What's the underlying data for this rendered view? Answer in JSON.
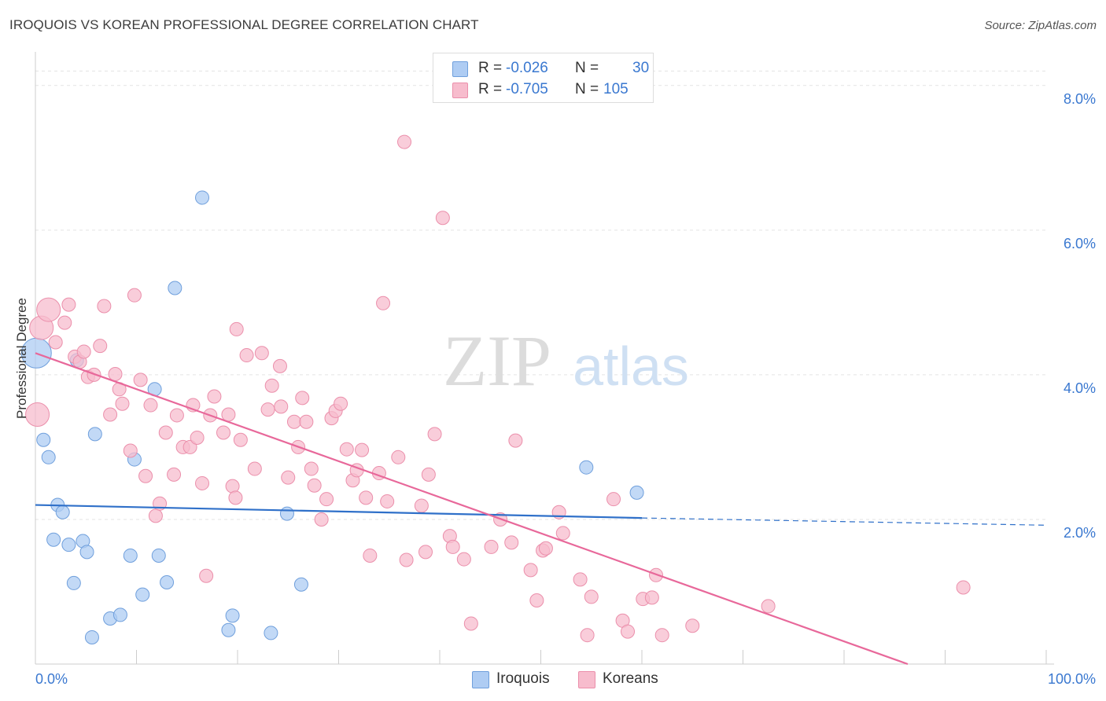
{
  "header": {
    "title": "IROQUOIS VS KOREAN PROFESSIONAL DEGREE CORRELATION CHART",
    "source": "Source: ZipAtlas.com"
  },
  "watermark": {
    "zip": "ZIP",
    "atlas": "atlas"
  },
  "legend": {
    "rows": [
      {
        "r_label": "R =",
        "r_value": "-0.026",
        "n_label": "N =",
        "n_value": "30",
        "color": "#aeccf3"
      },
      {
        "r_label": "R =",
        "r_value": "-0.705",
        "n_label": "N =",
        "n_value": "105",
        "color": "#f7bccd"
      }
    ]
  },
  "bottom_legend": {
    "items": [
      {
        "label": "Iroquois",
        "color": "#aeccf3"
      },
      {
        "label": "Koreans",
        "color": "#f7bccd"
      }
    ]
  },
  "colors": {
    "iroquois_fill": "#aeccf3",
    "iroquois_stroke": "#6f9fdc",
    "iroquois_line": "#2f70c9",
    "koreans_fill": "#f7bccd",
    "koreans_stroke": "#eb8fab",
    "koreans_line": "#e8689a",
    "tick_label": "#3a78d0",
    "grid": "#e3e3e3",
    "axis": "#cccccc"
  },
  "chart_data": {
    "type": "scatter",
    "title": "IROQUOIS VS KOREAN PROFESSIONAL DEGREE CORRELATION CHART",
    "xlabel": "",
    "ylabel": "Professional Degree",
    "xlim": [
      0,
      100
    ],
    "ylim": [
      0,
      8.4
    ],
    "x_tick_labels": [
      "0.0%",
      "100.0%"
    ],
    "y_ticks": [
      2,
      4,
      6,
      8
    ],
    "y_tick_labels": [
      "2.0%",
      "4.0%",
      "6.0%",
      "8.0%"
    ],
    "grid": true,
    "legend": "top-center",
    "series": [
      {
        "name": "Iroquois",
        "points": [
          [
            0.1,
            4.3,
            3
          ],
          [
            0.8,
            3.1,
            1
          ],
          [
            1.3,
            2.86,
            1
          ],
          [
            1.8,
            1.72,
            1
          ],
          [
            2.2,
            2.2,
            1
          ],
          [
            2.7,
            2.1,
            1
          ],
          [
            3.3,
            1.65,
            1
          ],
          [
            3.8,
            1.12,
            1
          ],
          [
            4.1,
            4.2,
            1
          ],
          [
            4.7,
            1.7,
            1
          ],
          [
            5.1,
            1.55,
            1
          ],
          [
            5.6,
            0.37,
            1
          ],
          [
            5.9,
            3.18,
            1
          ],
          [
            7.4,
            0.63,
            1
          ],
          [
            8.4,
            0.68,
            1
          ],
          [
            9.4,
            1.5,
            1
          ],
          [
            9.8,
            2.83,
            1
          ],
          [
            10.6,
            0.96,
            1
          ],
          [
            11.8,
            3.8,
            1
          ],
          [
            12.2,
            1.5,
            1
          ],
          [
            13.0,
            1.13,
            1
          ],
          [
            13.8,
            5.2,
            1
          ],
          [
            16.5,
            6.45,
            1
          ],
          [
            19.1,
            0.47,
            1
          ],
          [
            19.5,
            0.67,
            1
          ],
          [
            23.3,
            0.43,
            1
          ],
          [
            24.9,
            2.08,
            1
          ],
          [
            26.3,
            1.1,
            1
          ],
          [
            54.5,
            2.72,
            1
          ],
          [
            59.5,
            2.37,
            1
          ]
        ]
      },
      {
        "name": "Koreans",
        "points": [
          [
            0.2,
            3.45,
            2
          ],
          [
            0.6,
            4.65,
            2
          ],
          [
            1.3,
            4.9,
            2
          ],
          [
            2.0,
            4.45,
            1
          ],
          [
            2.9,
            4.72,
            1
          ],
          [
            3.3,
            4.97,
            1
          ],
          [
            3.9,
            4.25,
            1
          ],
          [
            4.4,
            4.18,
            1
          ],
          [
            4.8,
            4.32,
            1
          ],
          [
            5.2,
            3.97,
            1
          ],
          [
            5.8,
            4.0,
            1
          ],
          [
            6.4,
            4.4,
            1
          ],
          [
            6.8,
            4.95,
            1
          ],
          [
            7.4,
            3.45,
            1
          ],
          [
            7.9,
            4.01,
            1
          ],
          [
            8.3,
            3.8,
            1
          ],
          [
            8.6,
            3.6,
            1
          ],
          [
            9.4,
            2.95,
            1
          ],
          [
            9.8,
            5.1,
            1
          ],
          [
            10.4,
            3.93,
            1
          ],
          [
            10.9,
            2.6,
            1
          ],
          [
            11.4,
            3.58,
            1
          ],
          [
            11.9,
            2.05,
            1
          ],
          [
            12.3,
            2.22,
            1
          ],
          [
            12.9,
            3.2,
            1
          ],
          [
            13.7,
            2.62,
            1
          ],
          [
            14.0,
            3.44,
            1
          ],
          [
            14.6,
            3.0,
            1
          ],
          [
            15.3,
            3.0,
            1
          ],
          [
            15.6,
            3.58,
            1
          ],
          [
            16.0,
            3.13,
            1
          ],
          [
            16.5,
            2.5,
            1
          ],
          [
            16.9,
            1.22,
            1
          ],
          [
            17.3,
            3.44,
            1
          ],
          [
            17.7,
            3.7,
            1
          ],
          [
            18.6,
            3.2,
            1
          ],
          [
            19.1,
            3.45,
            1
          ],
          [
            19.5,
            2.46,
            1
          ],
          [
            19.8,
            2.3,
            1
          ],
          [
            19.9,
            4.63,
            1
          ],
          [
            20.3,
            3.1,
            1
          ],
          [
            20.9,
            4.27,
            1
          ],
          [
            21.7,
            2.7,
            1
          ],
          [
            22.4,
            4.3,
            1
          ],
          [
            23.0,
            3.52,
            1
          ],
          [
            23.4,
            3.85,
            1
          ],
          [
            24.2,
            4.12,
            1
          ],
          [
            24.3,
            3.56,
            1
          ],
          [
            25.0,
            2.58,
            1
          ],
          [
            25.6,
            3.35,
            1
          ],
          [
            26.0,
            3.0,
            1
          ],
          [
            26.4,
            3.68,
            1
          ],
          [
            26.8,
            3.35,
            1
          ],
          [
            27.3,
            2.7,
            1
          ],
          [
            27.6,
            2.47,
            1
          ],
          [
            28.3,
            2.0,
            1
          ],
          [
            28.8,
            2.28,
            1
          ],
          [
            29.3,
            3.4,
            1
          ],
          [
            29.7,
            3.5,
            1
          ],
          [
            30.2,
            3.6,
            1
          ],
          [
            30.8,
            2.97,
            1
          ],
          [
            31.4,
            2.54,
            1
          ],
          [
            31.8,
            2.68,
            1
          ],
          [
            32.3,
            2.96,
            1
          ],
          [
            32.7,
            2.3,
            1
          ],
          [
            33.1,
            1.5,
            1
          ],
          [
            34.0,
            2.64,
            1
          ],
          [
            34.4,
            4.99,
            1
          ],
          [
            34.8,
            2.25,
            1
          ],
          [
            35.9,
            2.86,
            1
          ],
          [
            36.5,
            7.22,
            1
          ],
          [
            36.7,
            1.44,
            1
          ],
          [
            38.2,
            2.19,
            1
          ],
          [
            38.6,
            1.55,
            1
          ],
          [
            38.9,
            2.62,
            1
          ],
          [
            39.5,
            3.18,
            1
          ],
          [
            40.3,
            6.17,
            1
          ],
          [
            41.0,
            1.77,
            1
          ],
          [
            41.3,
            1.62,
            1
          ],
          [
            42.4,
            1.45,
            1
          ],
          [
            43.1,
            0.56,
            1
          ],
          [
            45.1,
            1.62,
            1
          ],
          [
            46.0,
            2.0,
            1
          ],
          [
            47.1,
            1.68,
            1
          ],
          [
            47.5,
            3.09,
            1
          ],
          [
            49.0,
            1.3,
            1
          ],
          [
            49.6,
            0.88,
            1
          ],
          [
            50.2,
            1.57,
            1
          ],
          [
            50.5,
            1.6,
            1
          ],
          [
            51.8,
            2.1,
            1
          ],
          [
            52.2,
            1.81,
            1
          ],
          [
            53.9,
            1.17,
            1
          ],
          [
            54.6,
            0.4,
            1
          ],
          [
            55.0,
            0.93,
            1
          ],
          [
            57.2,
            2.28,
            1
          ],
          [
            58.1,
            0.6,
            1
          ],
          [
            58.6,
            0.45,
            1
          ],
          [
            60.1,
            0.9,
            1
          ],
          [
            61.0,
            0.92,
            1
          ],
          [
            61.4,
            1.23,
            1
          ],
          [
            62.0,
            0.4,
            1
          ],
          [
            65.0,
            0.53,
            1
          ],
          [
            72.5,
            0.8,
            1
          ],
          [
            91.8,
            1.06,
            1
          ]
        ]
      }
    ],
    "trend_lines": [
      {
        "series": "Iroquois",
        "x": [
          0,
          60
        ],
        "y": [
          2.2,
          2.02
        ],
        "extension": {
          "x": [
            60,
            100
          ],
          "y": [
            2.02,
            1.92
          ],
          "style": "dashed"
        }
      },
      {
        "series": "Koreans",
        "x": [
          0,
          86.3
        ],
        "y": [
          4.3,
          0
        ]
      }
    ]
  }
}
